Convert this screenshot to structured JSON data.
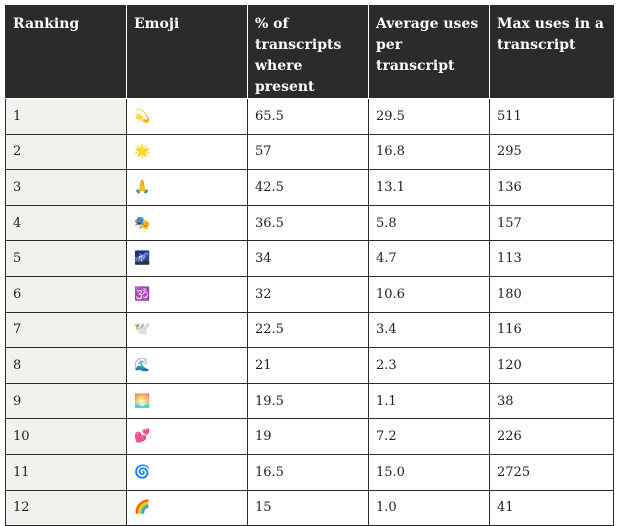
{
  "table": {
    "headers": [
      "Ranking",
      "Emoji",
      "% of transcripts where present",
      "Average uses per transcript",
      "Max uses in a transcript"
    ],
    "rows": [
      {
        "ranking": "1",
        "emoji": "💫",
        "emoji_name": "dizzy-emoji",
        "pct_present": "65.5",
        "avg_uses": "29.5",
        "max_uses": "511"
      },
      {
        "ranking": "2",
        "emoji": "🌟",
        "emoji_name": "glowing-star-emoji",
        "pct_present": "57",
        "avg_uses": "16.8",
        "max_uses": "295"
      },
      {
        "ranking": "3",
        "emoji": "🙏",
        "emoji_name": "folded-hands-emoji",
        "pct_present": "42.5",
        "avg_uses": "13.1",
        "max_uses": "136"
      },
      {
        "ranking": "4",
        "emoji": "🎭",
        "emoji_name": "performing-arts-emoji",
        "pct_present": "36.5",
        "avg_uses": "5.8",
        "max_uses": "157"
      },
      {
        "ranking": "5",
        "emoji": "🌌",
        "emoji_name": "milky-way-emoji",
        "pct_present": "34",
        "avg_uses": "4.7",
        "max_uses": "113"
      },
      {
        "ranking": "6",
        "emoji": "🕉️",
        "emoji_name": "om-emoji",
        "pct_present": "32",
        "avg_uses": "10.6",
        "max_uses": "180"
      },
      {
        "ranking": "7",
        "emoji": "🕊️",
        "emoji_name": "dove-emoji",
        "pct_present": "22.5",
        "avg_uses": "3.4",
        "max_uses": "116"
      },
      {
        "ranking": "8",
        "emoji": "🌊",
        "emoji_name": "water-wave-emoji",
        "pct_present": "21",
        "avg_uses": "2.3",
        "max_uses": "120"
      },
      {
        "ranking": "9",
        "emoji": "🌅",
        "emoji_name": "sunrise-emoji",
        "pct_present": "19.5",
        "avg_uses": "1.1",
        "max_uses": "38"
      },
      {
        "ranking": "10",
        "emoji": "💕",
        "emoji_name": "two-hearts-emoji",
        "pct_present": "19",
        "avg_uses": "7.2",
        "max_uses": "226"
      },
      {
        "ranking": "11",
        "emoji": "🌀",
        "emoji_name": "cyclone-emoji",
        "pct_present": "16.5",
        "avg_uses": "15.0",
        "max_uses": "2725"
      },
      {
        "ranking": "12",
        "emoji": "🌈",
        "emoji_name": "rainbow-emoji",
        "pct_present": "15",
        "avg_uses": "1.0",
        "max_uses": "41"
      }
    ]
  },
  "colors": {
    "header_background": "#2b2b2b",
    "header_text": "#ffffff",
    "ranking_column_background": "#f2f1ee",
    "border": "#2b2b2b",
    "body_text": "#222222"
  }
}
